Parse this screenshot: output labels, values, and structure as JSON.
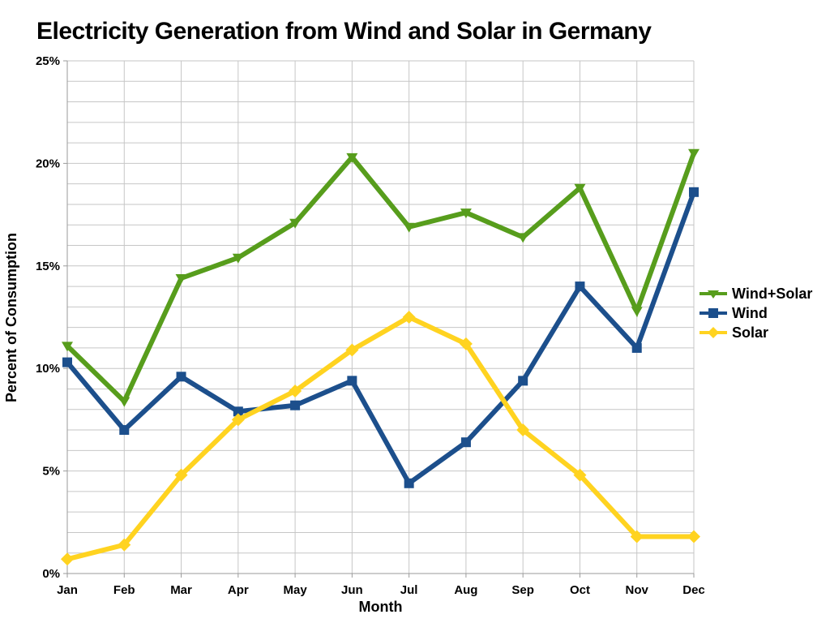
{
  "chart_data": {
    "type": "line",
    "title": "Electricity Generation from Wind and Solar in Germany",
    "xlabel": "Month",
    "ylabel": "Percent of Consumption",
    "categories": [
      "Jan",
      "Feb",
      "Mar",
      "Apr",
      "May",
      "Jun",
      "Jul",
      "Aug",
      "Sep",
      "Oct",
      "Nov",
      "Dec"
    ],
    "y_tick_labels": [
      "0%",
      "5%",
      "10%",
      "15%",
      "20%",
      "25%"
    ],
    "ylim": [
      0,
      25
    ],
    "grid": "horizontal minor lines every 1%, vertical line at each month",
    "legend_position": "right",
    "series": [
      {
        "name": "Wind+Solar",
        "color": "#579d1c",
        "marker": "triangle-down",
        "values": [
          11.1,
          8.4,
          14.4,
          15.4,
          17.1,
          20.3,
          16.9,
          17.6,
          16.4,
          18.8,
          12.8,
          20.5
        ]
      },
      {
        "name": "Wind",
        "color": "#1c4f8c",
        "marker": "square",
        "values": [
          10.3,
          7.0,
          9.6,
          7.9,
          8.2,
          9.4,
          4.4,
          6.4,
          9.4,
          14.0,
          11.0,
          18.6
        ]
      },
      {
        "name": "Solar",
        "color": "#ffd320",
        "marker": "diamond",
        "values": [
          0.7,
          1.4,
          4.8,
          7.5,
          8.9,
          10.9,
          12.5,
          11.2,
          7.0,
          4.8,
          1.8,
          1.8
        ]
      }
    ],
    "style": {
      "grid_color": "#c6c6c6",
      "axis_color": "#9a9a9a",
      "text_color": "#000000",
      "background": "#ffffff"
    }
  }
}
